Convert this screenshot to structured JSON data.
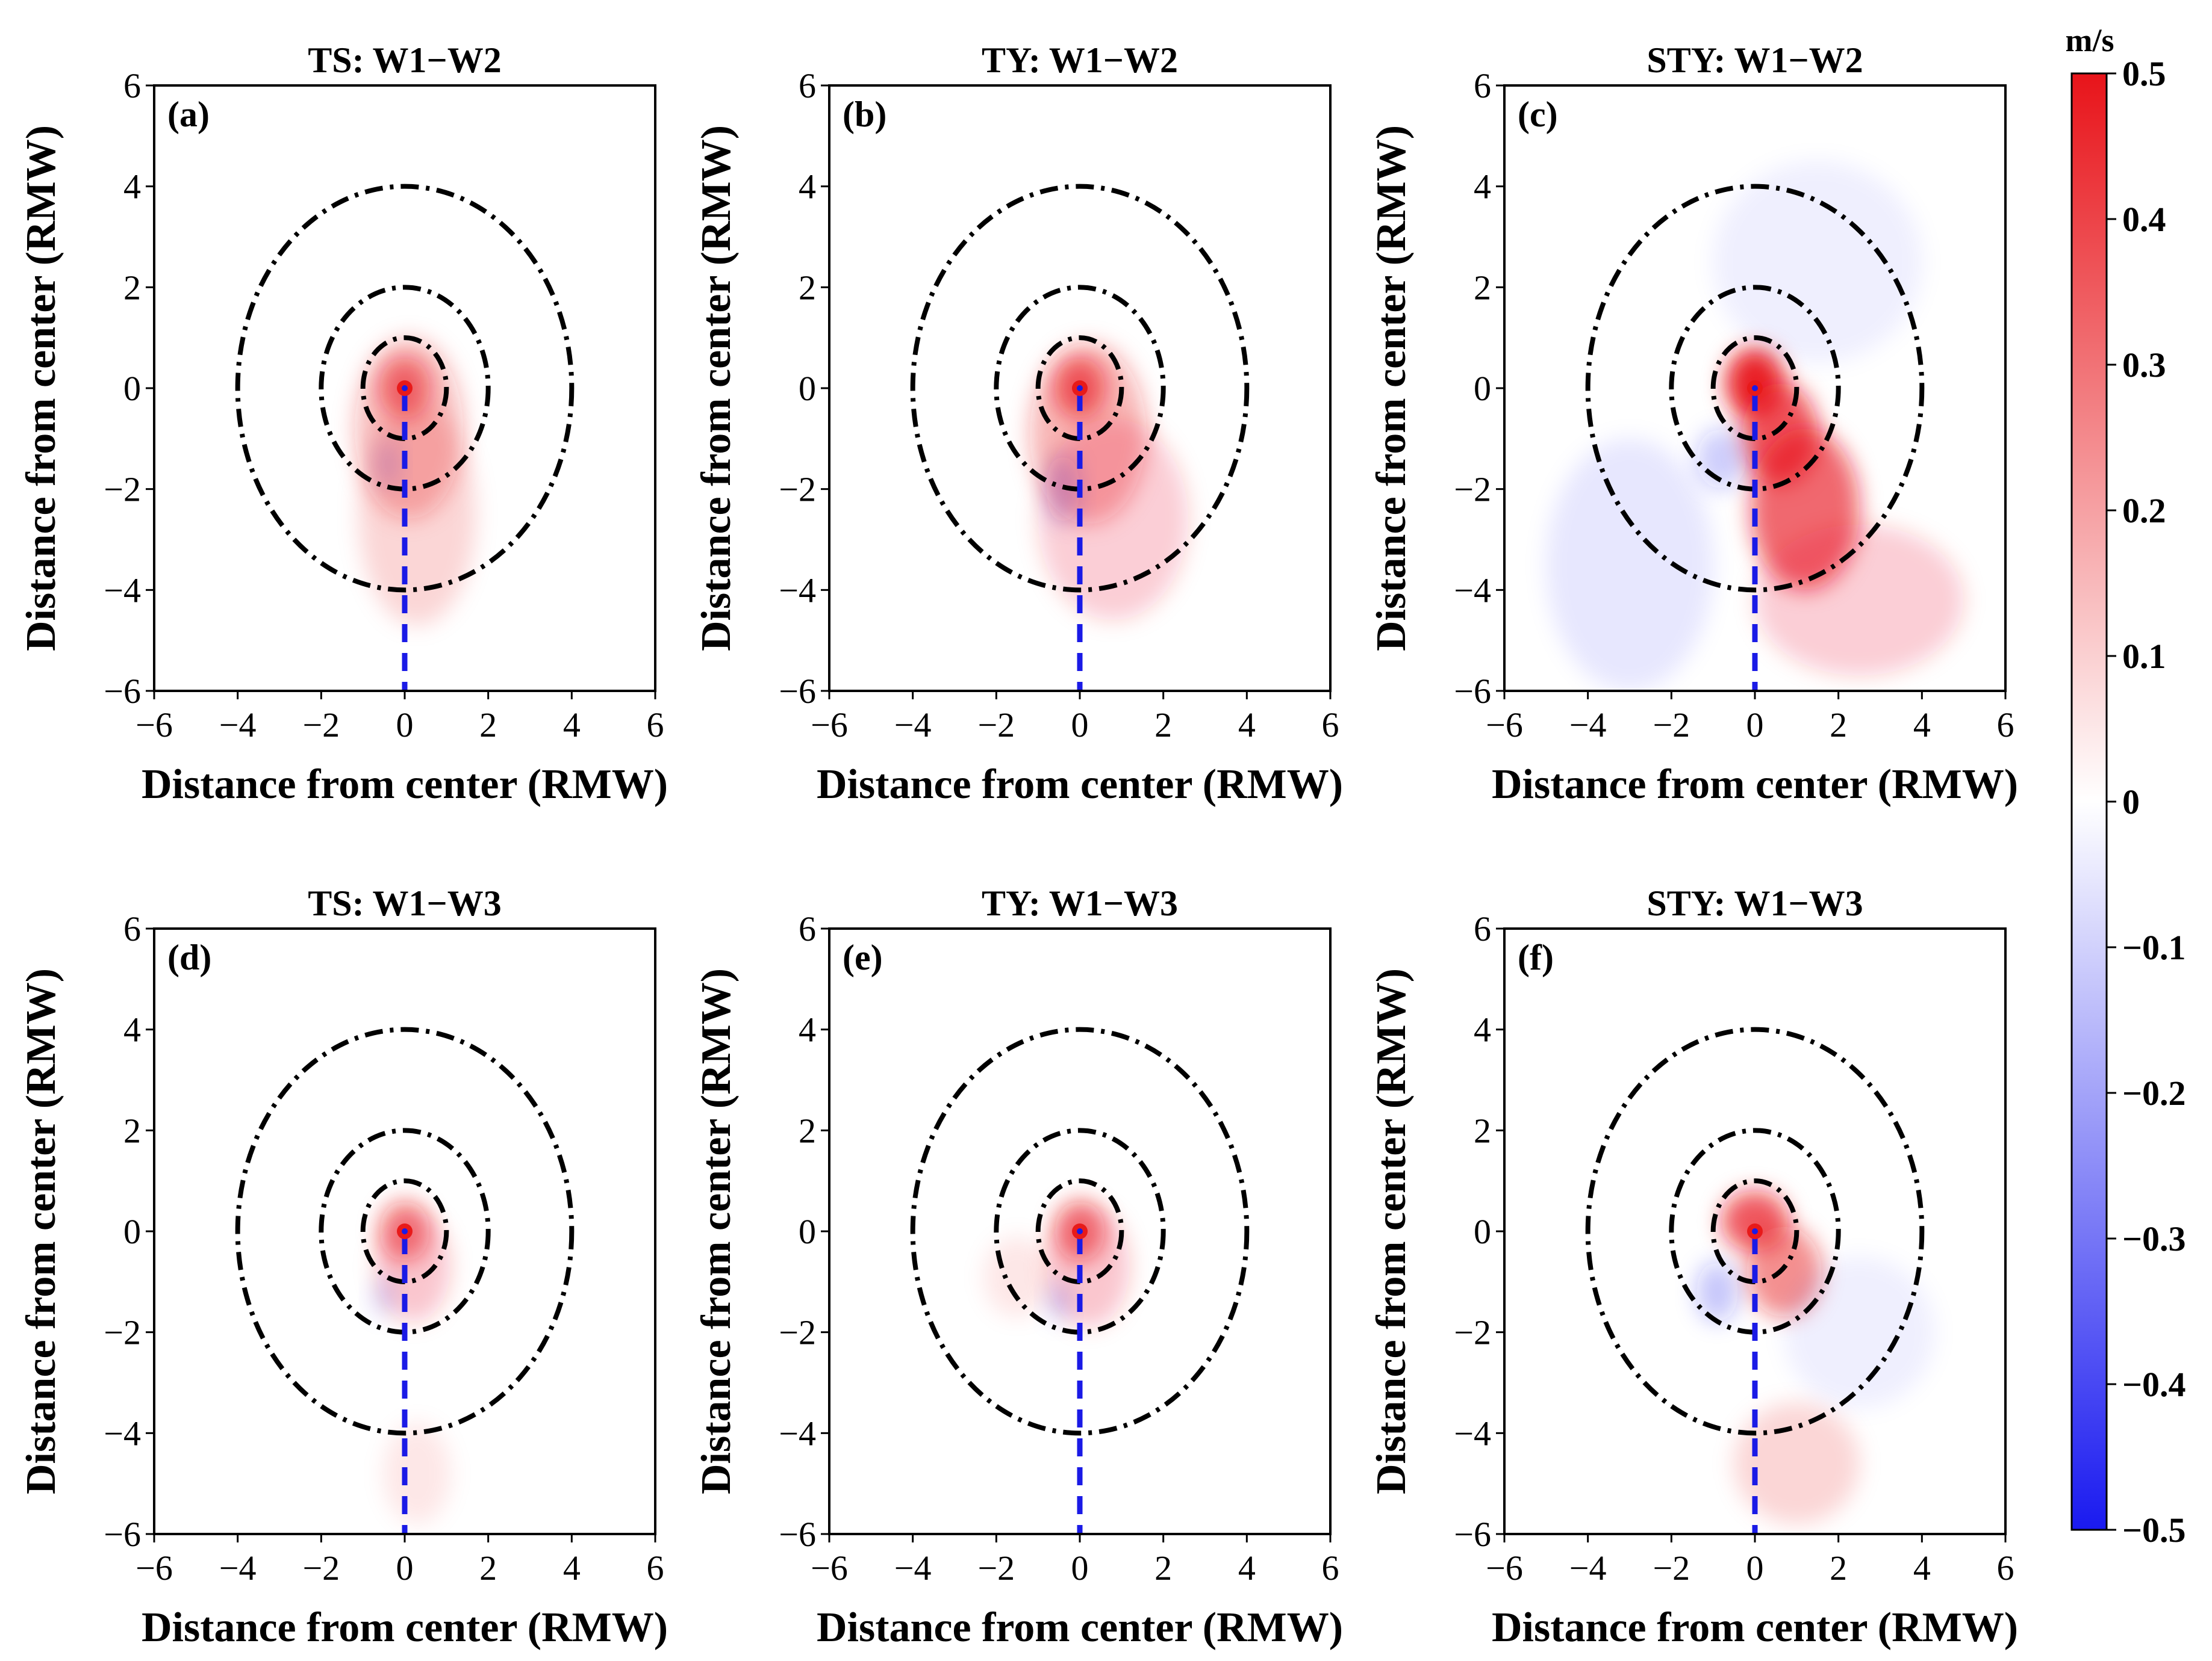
{
  "colors": {
    "positive": "#e8141a",
    "negative": "#1a1af0",
    "neutral": "#ffffff",
    "ring": "#000000",
    "track_line": "#1a1ae6",
    "center_marker": "#e81a1a",
    "center_dot": "#1a1ae6"
  },
  "chart_data": [
    {
      "type": "heatmap",
      "panel_label": "(a)",
      "title": "TS: W1−W2",
      "xlabel": "Distance from center (RMW)",
      "ylabel": "Distance from center (RMW)",
      "xlim": [
        -6,
        6
      ],
      "ylim": [
        -6,
        6
      ],
      "xticks": [
        "−6",
        "−4",
        "−2",
        "0",
        "2",
        "4",
        "6"
      ],
      "yticks": [
        "−6",
        "−4",
        "−2",
        "0",
        "2",
        "4",
        "6"
      ],
      "rings_rmw": [
        1,
        2,
        4
      ],
      "track_line": {
        "x": 0,
        "y_from": 0,
        "y_to": -6
      },
      "anomalies": [
        {
          "x": 0,
          "y": 0,
          "sx": 0.6,
          "sy": 0.6,
          "v": 0.18
        },
        {
          "x": 0.1,
          "y": -0.8,
          "sx": 1.3,
          "sy": 1.8,
          "v": 0.09
        },
        {
          "x": 0.3,
          "y": -2.5,
          "sx": 1.4,
          "sy": 2.2,
          "v": 0.05
        },
        {
          "x": -0.4,
          "y": -1.5,
          "sx": 0.3,
          "sy": 0.5,
          "v": -0.04
        }
      ]
    },
    {
      "type": "heatmap",
      "panel_label": "(b)",
      "title": "TY: W1−W2",
      "xlabel": "Distance from center (RMW)",
      "ylabel": "Distance from center (RMW)",
      "xlim": [
        -6,
        6
      ],
      "ylim": [
        -6,
        6
      ],
      "xticks": [
        "−6",
        "−4",
        "−2",
        "0",
        "2",
        "4",
        "6"
      ],
      "yticks": [
        "−6",
        "−4",
        "−2",
        "0",
        "2",
        "4",
        "6"
      ],
      "rings_rmw": [
        1,
        2,
        4
      ],
      "track_line": {
        "x": 0,
        "y_from": 0,
        "y_to": -6
      },
      "anomalies": [
        {
          "x": 0,
          "y": 0,
          "sx": 0.6,
          "sy": 0.6,
          "v": 0.2
        },
        {
          "x": 0.2,
          "y": -0.9,
          "sx": 1.4,
          "sy": 1.8,
          "v": 0.1
        },
        {
          "x": 0.8,
          "y": -2.6,
          "sx": 1.8,
          "sy": 2.0,
          "v": 0.06
        },
        {
          "x": -0.4,
          "y": -2.0,
          "sx": 0.4,
          "sy": 0.7,
          "v": -0.06
        }
      ]
    },
    {
      "type": "heatmap",
      "panel_label": "(c)",
      "title": "STY: W1−W2",
      "xlabel": "Distance from center (RMW)",
      "ylabel": "Distance from center (RMW)",
      "xlim": [
        -6,
        6
      ],
      "ylim": [
        -6,
        6
      ],
      "xticks": [
        "−6",
        "−4",
        "−2",
        "0",
        "2",
        "4",
        "6"
      ],
      "yticks": [
        "−6",
        "−4",
        "−2",
        "0",
        "2",
        "4",
        "6"
      ],
      "rings_rmw": [
        1,
        2,
        4
      ],
      "track_line": {
        "x": 0,
        "y_from": 0,
        "y_to": -6
      },
      "anomalies": [
        {
          "x": 0,
          "y": 0.1,
          "sx": 0.7,
          "sy": 0.7,
          "v": 0.3
        },
        {
          "x": 0.6,
          "y": -0.9,
          "sx": 0.9,
          "sy": 1.0,
          "v": 0.22
        },
        {
          "x": 1.2,
          "y": -2.4,
          "sx": 1.3,
          "sy": 1.6,
          "v": 0.2
        },
        {
          "x": 2.5,
          "y": -4.2,
          "sx": 2.5,
          "sy": 1.5,
          "v": 0.06
        },
        {
          "x": -0.8,
          "y": -1.4,
          "sx": 0.6,
          "sy": 0.6,
          "v": -0.07
        },
        {
          "x": -3.0,
          "y": -3.5,
          "sx": 2.0,
          "sy": 2.5,
          "v": -0.03
        },
        {
          "x": 1.5,
          "y": 2.5,
          "sx": 2.5,
          "sy": 2.0,
          "v": -0.02
        }
      ]
    },
    {
      "type": "heatmap",
      "panel_label": "(d)",
      "title": "TS: W1−W3",
      "xlabel": "Distance from center (RMW)",
      "ylabel": "Distance from center (RMW)",
      "xlim": [
        -6,
        6
      ],
      "ylim": [
        -6,
        6
      ],
      "xticks": [
        "−6",
        "−4",
        "−2",
        "0",
        "2",
        "4",
        "6"
      ],
      "yticks": [
        "−6",
        "−4",
        "−2",
        "0",
        "2",
        "4",
        "6"
      ],
      "rings_rmw": [
        1,
        2,
        4
      ],
      "track_line": {
        "x": 0,
        "y_from": 0,
        "y_to": -6
      },
      "anomalies": [
        {
          "x": 0,
          "y": 0,
          "sx": 0.6,
          "sy": 0.6,
          "v": 0.16
        },
        {
          "x": 0.2,
          "y": -0.7,
          "sx": 0.9,
          "sy": 1.1,
          "v": 0.07
        },
        {
          "x": 0.3,
          "y": -4.8,
          "sx": 0.8,
          "sy": 1.0,
          "v": 0.03
        },
        {
          "x": -0.5,
          "y": -1.3,
          "sx": 0.3,
          "sy": 0.4,
          "v": -0.04
        }
      ]
    },
    {
      "type": "heatmap",
      "panel_label": "(e)",
      "title": "TY: W1−W3",
      "xlabel": "Distance from center (RMW)",
      "ylabel": "Distance from center (RMW)",
      "xlim": [
        -6,
        6
      ],
      "ylim": [
        -6,
        6
      ],
      "xticks": [
        "−6",
        "−4",
        "−2",
        "0",
        "2",
        "4",
        "6"
      ],
      "yticks": [
        "−6",
        "−4",
        "−2",
        "0",
        "2",
        "4",
        "6"
      ],
      "rings_rmw": [
        1,
        2,
        4
      ],
      "track_line": {
        "x": 0,
        "y_from": 0,
        "y_to": -6
      },
      "anomalies": [
        {
          "x": 0,
          "y": 0,
          "sx": 0.6,
          "sy": 0.6,
          "v": 0.17
        },
        {
          "x": 0.2,
          "y": -0.7,
          "sx": 1.0,
          "sy": 1.2,
          "v": 0.07
        },
        {
          "x": -1.5,
          "y": -0.9,
          "sx": 0.8,
          "sy": 0.8,
          "v": 0.03
        },
        {
          "x": -0.5,
          "y": -1.4,
          "sx": 0.3,
          "sy": 0.4,
          "v": -0.05
        }
      ]
    },
    {
      "type": "heatmap",
      "panel_label": "(f)",
      "title": "STY: W1−W3",
      "xlabel": "Distance from center (RMW)",
      "ylabel": "Distance from center (RMW)",
      "xlim": [
        -6,
        6
      ],
      "ylim": [
        -6,
        6
      ],
      "xticks": [
        "−6",
        "−4",
        "−2",
        "0",
        "2",
        "4",
        "6"
      ],
      "yticks": [
        "−6",
        "−4",
        "−2",
        "0",
        "2",
        "4",
        "6"
      ],
      "rings_rmw": [
        1,
        2,
        4
      ],
      "track_line": {
        "x": 0,
        "y_from": 0,
        "y_to": -6
      },
      "anomalies": [
        {
          "x": 0,
          "y": 0.2,
          "sx": 0.8,
          "sy": 0.6,
          "v": 0.22
        },
        {
          "x": 0.7,
          "y": -0.8,
          "sx": 0.9,
          "sy": 0.9,
          "v": 0.15
        },
        {
          "x": 1.0,
          "y": -4.6,
          "sx": 1.5,
          "sy": 1.2,
          "v": 0.05
        },
        {
          "x": -0.9,
          "y": -1.2,
          "sx": 0.5,
          "sy": 0.6,
          "v": -0.08
        },
        {
          "x": 2.5,
          "y": -2.0,
          "sx": 1.8,
          "sy": 1.5,
          "v": -0.02
        }
      ]
    }
  ],
  "colorbar": {
    "unit": "m/s",
    "range": [
      -0.5,
      0.5
    ],
    "ticks": [
      "0.5",
      "0.4",
      "0.3",
      "0.2",
      "0.1",
      "0",
      "−0.1",
      "−0.2",
      "−0.3",
      "−0.4",
      "−0.5"
    ]
  }
}
